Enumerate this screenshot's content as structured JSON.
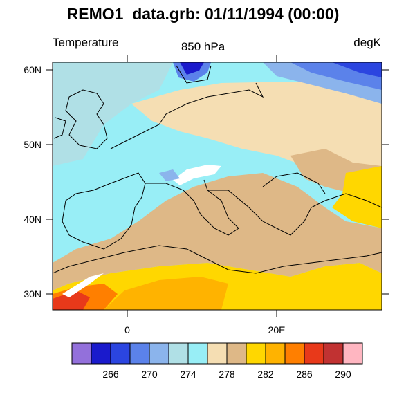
{
  "title": "REMO1_data.grb: 01/11/1994 (00:00)",
  "subtitle": {
    "left": "Temperature",
    "center": "850 hPa",
    "right": "degK"
  },
  "map": {
    "lat_range": [
      28,
      61
    ],
    "lon_range": [
      -10,
      34
    ],
    "lat_ticks": [
      "60N",
      "50N",
      "40N",
      "30N"
    ],
    "lon_ticks": [
      "0",
      "20E"
    ]
  },
  "legend": {
    "colors": [
      "#9370DB",
      "#1A1ACC",
      "#2B45E0",
      "#5B82EA",
      "#8BB4EC",
      "#B0E0E6",
      "#98EEF6",
      "#F5DEB3",
      "#DEB887",
      "#FFD700",
      "#FFB300",
      "#FF7F00",
      "#E8391A",
      "#C13232",
      "#FFB6C1"
    ],
    "labels": [
      "266",
      "270",
      "274",
      "278",
      "282",
      "286",
      "290"
    ]
  }
}
